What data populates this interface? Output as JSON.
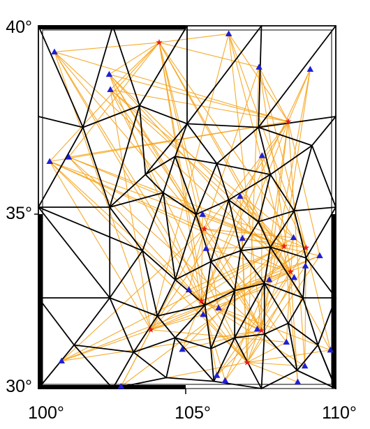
{
  "axes": {
    "lon_range": [
      100,
      110
    ],
    "lat_range": [
      30,
      40
    ],
    "x_ticks": [
      "100°",
      "105°",
      "110°"
    ],
    "y_ticks": [
      "40°",
      "35°",
      "30°"
    ]
  },
  "colors": {
    "ray_path": "#f5a623",
    "mesh_edge": "#000000",
    "station": "#1f1fd6",
    "event": "#e81c1c",
    "frame": "#000000"
  },
  "symbols": {
    "station": "blue-triangle",
    "event": "red-star"
  },
  "events": [
    {
      "lon": 104.06,
      "lat": 39.54
    },
    {
      "lon": 108.4,
      "lat": 37.36
    },
    {
      "lon": 105.58,
      "lat": 34.4
    },
    {
      "lon": 108.26,
      "lat": 33.92
    },
    {
      "lon": 109.0,
      "lat": 33.88
    },
    {
      "lon": 108.48,
      "lat": 33.22
    },
    {
      "lon": 105.48,
      "lat": 32.42
    },
    {
      "lon": 103.78,
      "lat": 31.62
    },
    {
      "lon": 107.5,
      "lat": 31.6
    },
    {
      "lon": 107.02,
      "lat": 30.72
    }
  ],
  "stations": [
    {
      "lon": 100.54,
      "lat": 39.28
    },
    {
      "lon": 102.38,
      "lat": 38.66
    },
    {
      "lon": 102.42,
      "lat": 38.24
    },
    {
      "lon": 106.4,
      "lat": 39.78
    },
    {
      "lon": 107.42,
      "lat": 38.86
    },
    {
      "lon": 109.14,
      "lat": 38.8
    },
    {
      "lon": 100.38,
      "lat": 36.26
    },
    {
      "lon": 101.02,
      "lat": 36.38
    },
    {
      "lon": 107.52,
      "lat": 36.42
    },
    {
      "lon": 106.78,
      "lat": 35.3
    },
    {
      "lon": 105.52,
      "lat": 34.8
    },
    {
      "lon": 108.58,
      "lat": 34.16
    },
    {
      "lon": 106.86,
      "lat": 34.14
    },
    {
      "lon": 105.64,
      "lat": 33.86
    },
    {
      "lon": 109.46,
      "lat": 33.66
    },
    {
      "lon": 108.98,
      "lat": 33.38
    },
    {
      "lon": 108.6,
      "lat": 33.06
    },
    {
      "lon": 107.76,
      "lat": 33.0
    },
    {
      "lon": 105.06,
      "lat": 32.72
    },
    {
      "lon": 106.06,
      "lat": 32.22
    },
    {
      "lon": 105.54,
      "lat": 32.04
    },
    {
      "lon": 107.36,
      "lat": 31.64
    },
    {
      "lon": 108.34,
      "lat": 31.28
    },
    {
      "lon": 104.84,
      "lat": 31.08
    },
    {
      "lon": 109.82,
      "lat": 31.06
    },
    {
      "lon": 100.78,
      "lat": 30.76
    },
    {
      "lon": 108.96,
      "lat": 30.62
    },
    {
      "lon": 106.0,
      "lat": 30.36
    },
    {
      "lon": 106.28,
      "lat": 30.22
    },
    {
      "lon": 102.78,
      "lat": 30.06
    },
    {
      "lon": 108.72,
      "lat": 30.18
    }
  ],
  "mesh_nodes": [
    [
      100.0,
      40.0
    ],
    [
      102.5,
      40.0
    ],
    [
      105.0,
      40.0
    ],
    [
      107.5,
      40.0
    ],
    [
      110.0,
      40.0
    ],
    [
      100.0,
      37.5
    ],
    [
      101.5,
      37.2
    ],
    [
      103.4,
      37.8
    ],
    [
      105.0,
      37.3
    ],
    [
      107.4,
      37.2
    ],
    [
      110.0,
      37.5
    ],
    [
      100.0,
      35.0
    ],
    [
      102.4,
      35.0
    ],
    [
      103.6,
      35.9
    ],
    [
      104.6,
      36.4
    ],
    [
      106.0,
      36.2
    ],
    [
      107.8,
      35.9
    ],
    [
      109.2,
      36.7
    ],
    [
      104.2,
      35.4
    ],
    [
      105.3,
      34.8
    ],
    [
      106.4,
      35.2
    ],
    [
      107.4,
      34.6
    ],
    [
      108.6,
      34.9
    ],
    [
      110.0,
      35.0
    ],
    [
      103.5,
      33.8
    ],
    [
      104.6,
      33.0
    ],
    [
      105.8,
      33.5
    ],
    [
      106.8,
      33.8
    ],
    [
      107.8,
      33.9
    ],
    [
      109.0,
      33.6
    ],
    [
      100.0,
      32.5
    ],
    [
      102.4,
      32.5
    ],
    [
      104.0,
      32.0
    ],
    [
      105.6,
      32.3
    ],
    [
      106.6,
      32.7
    ],
    [
      107.6,
      32.9
    ],
    [
      108.9,
      32.5
    ],
    [
      110.0,
      32.5
    ],
    [
      101.2,
      31.2
    ],
    [
      103.2,
      31.0
    ],
    [
      104.6,
      31.4
    ],
    [
      105.8,
      31.1
    ],
    [
      106.6,
      31.4
    ],
    [
      107.6,
      31.5
    ],
    [
      108.4,
      31.8
    ],
    [
      109.4,
      31.2
    ],
    [
      100.0,
      30.0
    ],
    [
      102.5,
      30.0
    ],
    [
      104.3,
      30.3
    ],
    [
      105.9,
      30.2
    ],
    [
      107.5,
      30.0
    ],
    [
      108.7,
      30.5
    ],
    [
      110.0,
      30.0
    ]
  ],
  "mesh_edges": [
    [
      0,
      1
    ],
    [
      1,
      2
    ],
    [
      2,
      3
    ],
    [
      3,
      4
    ],
    [
      0,
      5
    ],
    [
      5,
      11
    ],
    [
      11,
      30
    ],
    [
      30,
      46
    ],
    [
      4,
      10
    ],
    [
      10,
      23
    ],
    [
      23,
      37
    ],
    [
      37,
      52
    ],
    [
      46,
      47
    ],
    [
      47,
      48
    ],
    [
      48,
      49
    ],
    [
      49,
      50
    ],
    [
      50,
      51
    ],
    [
      51,
      52
    ],
    [
      0,
      6
    ],
    [
      1,
      6
    ],
    [
      1,
      7
    ],
    [
      2,
      7
    ],
    [
      2,
      8
    ],
    [
      3,
      8
    ],
    [
      3,
      9
    ],
    [
      4,
      9
    ],
    [
      5,
      6
    ],
    [
      6,
      7
    ],
    [
      7,
      8
    ],
    [
      8,
      9
    ],
    [
      9,
      10
    ],
    [
      9,
      17
    ],
    [
      10,
      17
    ],
    [
      6,
      11
    ],
    [
      6,
      12
    ],
    [
      7,
      12
    ],
    [
      7,
      13
    ],
    [
      8,
      13
    ],
    [
      8,
      14
    ],
    [
      8,
      15
    ],
    [
      9,
      15
    ],
    [
      9,
      16
    ],
    [
      16,
      17
    ],
    [
      17,
      22
    ],
    [
      17,
      23
    ],
    [
      11,
      12
    ],
    [
      12,
      13
    ],
    [
      13,
      14
    ],
    [
      14,
      15
    ],
    [
      15,
      16
    ],
    [
      13,
      18
    ],
    [
      14,
      18
    ],
    [
      14,
      19
    ],
    [
      15,
      19
    ],
    [
      15,
      20
    ],
    [
      16,
      20
    ],
    [
      16,
      21
    ],
    [
      16,
      22
    ],
    [
      22,
      23
    ],
    [
      12,
      18
    ],
    [
      18,
      19
    ],
    [
      19,
      20
    ],
    [
      20,
      21
    ],
    [
      21,
      22
    ],
    [
      12,
      24
    ],
    [
      18,
      24
    ],
    [
      18,
      25
    ],
    [
      19,
      25
    ],
    [
      19,
      26
    ],
    [
      20,
      26
    ],
    [
      20,
      27
    ],
    [
      21,
      27
    ],
    [
      21,
      28
    ],
    [
      22,
      28
    ],
    [
      22,
      29
    ],
    [
      23,
      29
    ],
    [
      11,
      24
    ],
    [
      24,
      25
    ],
    [
      25,
      26
    ],
    [
      26,
      27
    ],
    [
      27,
      28
    ],
    [
      28,
      29
    ],
    [
      29,
      37
    ],
    [
      11,
      31
    ],
    [
      12,
      31
    ],
    [
      24,
      31
    ],
    [
      24,
      32
    ],
    [
      25,
      32
    ],
    [
      25,
      33
    ],
    [
      26,
      33
    ],
    [
      26,
      34
    ],
    [
      27,
      34
    ],
    [
      27,
      35
    ],
    [
      28,
      35
    ],
    [
      28,
      36
    ],
    [
      29,
      36
    ],
    [
      30,
      31
    ],
    [
      31,
      32
    ],
    [
      32,
      33
    ],
    [
      33,
      34
    ],
    [
      34,
      35
    ],
    [
      35,
      36
    ],
    [
      36,
      37
    ],
    [
      30,
      38
    ],
    [
      31,
      38
    ],
    [
      31,
      39
    ],
    [
      32,
      39
    ],
    [
      32,
      40
    ],
    [
      33,
      40
    ],
    [
      33,
      41
    ],
    [
      34,
      41
    ],
    [
      34,
      42
    ],
    [
      35,
      42
    ],
    [
      35,
      43
    ],
    [
      35,
      44
    ],
    [
      36,
      44
    ],
    [
      36,
      45
    ],
    [
      37,
      45
    ],
    [
      38,
      39
    ],
    [
      39,
      40
    ],
    [
      40,
      41
    ],
    [
      41,
      42
    ],
    [
      42,
      43
    ],
    [
      43,
      44
    ],
    [
      44,
      45
    ],
    [
      45,
      52
    ],
    [
      46,
      38
    ],
    [
      47,
      38
    ],
    [
      47,
      39
    ],
    [
      48,
      39
    ],
    [
      48,
      40
    ],
    [
      49,
      40
    ],
    [
      49,
      41
    ],
    [
      49,
      42
    ],
    [
      50,
      42
    ],
    [
      50,
      43
    ],
    [
      51,
      43
    ],
    [
      51,
      44
    ],
    [
      51,
      45
    ],
    [
      52,
      45
    ]
  ],
  "ray_pairs": [
    [
      0,
      0
    ],
    [
      0,
      1
    ],
    [
      0,
      2
    ],
    [
      0,
      3
    ],
    [
      0,
      4
    ],
    [
      0,
      6
    ],
    [
      0,
      7
    ],
    [
      0,
      10
    ],
    [
      0,
      11
    ],
    [
      0,
      13
    ],
    [
      0,
      16
    ],
    [
      0,
      20
    ],
    [
      0,
      24
    ],
    [
      0,
      27
    ],
    [
      1,
      0
    ],
    [
      1,
      1
    ],
    [
      1,
      2
    ],
    [
      1,
      3
    ],
    [
      1,
      4
    ],
    [
      1,
      5
    ],
    [
      1,
      6
    ],
    [
      1,
      7
    ],
    [
      1,
      8
    ],
    [
      1,
      9
    ],
    [
      1,
      12
    ],
    [
      1,
      14
    ],
    [
      1,
      17
    ],
    [
      1,
      21
    ],
    [
      1,
      26
    ],
    [
      2,
      0
    ],
    [
      2,
      1
    ],
    [
      2,
      2
    ],
    [
      2,
      4
    ],
    [
      2,
      6
    ],
    [
      2,
      8
    ],
    [
      2,
      11
    ],
    [
      2,
      14
    ],
    [
      2,
      18
    ],
    [
      2,
      19
    ],
    [
      2,
      22
    ],
    [
      2,
      25
    ],
    [
      2,
      29
    ],
    [
      3,
      1
    ],
    [
      3,
      2
    ],
    [
      3,
      3
    ],
    [
      3,
      5
    ],
    [
      3,
      6
    ],
    [
      3,
      7
    ],
    [
      3,
      9
    ],
    [
      3,
      10
    ],
    [
      3,
      13
    ],
    [
      3,
      18
    ],
    [
      3,
      20
    ],
    [
      3,
      23
    ],
    [
      3,
      25
    ],
    [
      3,
      28
    ],
    [
      3,
      30
    ],
    [
      4,
      2
    ],
    [
      4,
      3
    ],
    [
      4,
      4
    ],
    [
      4,
      7
    ],
    [
      4,
      8
    ],
    [
      4,
      12
    ],
    [
      4,
      15
    ],
    [
      4,
      19
    ],
    [
      4,
      21
    ],
    [
      4,
      24
    ],
    [
      4,
      26
    ],
    [
      4,
      29
    ],
    [
      5,
      0
    ],
    [
      5,
      1
    ],
    [
      5,
      4
    ],
    [
      5,
      6
    ],
    [
      5,
      9
    ],
    [
      5,
      11
    ],
    [
      5,
      13
    ],
    [
      5,
      16
    ],
    [
      5,
      19
    ],
    [
      5,
      22
    ],
    [
      5,
      25
    ],
    [
      5,
      27
    ],
    [
      5,
      30
    ],
    [
      6,
      0
    ],
    [
      6,
      1
    ],
    [
      6,
      5
    ],
    [
      6,
      6
    ],
    [
      6,
      7
    ],
    [
      6,
      8
    ],
    [
      6,
      10
    ],
    [
      6,
      12
    ],
    [
      6,
      14
    ],
    [
      6,
      15
    ],
    [
      6,
      17
    ],
    [
      6,
      21
    ],
    [
      6,
      23
    ],
    [
      6,
      24
    ],
    [
      6,
      26
    ],
    [
      6,
      28
    ],
    [
      7,
      0
    ],
    [
      7,
      2
    ],
    [
      7,
      3
    ],
    [
      7,
      6
    ],
    [
      7,
      9
    ],
    [
      7,
      11
    ],
    [
      7,
      14
    ],
    [
      7,
      16
    ],
    [
      7,
      18
    ],
    [
      7,
      20
    ],
    [
      7,
      22
    ],
    [
      7,
      25
    ],
    [
      7,
      29
    ],
    [
      8,
      1
    ],
    [
      8,
      3
    ],
    [
      8,
      5
    ],
    [
      8,
      7
    ],
    [
      8,
      8
    ],
    [
      8,
      10
    ],
    [
      8,
      13
    ],
    [
      8,
      15
    ],
    [
      8,
      17
    ],
    [
      8,
      19
    ],
    [
      8,
      23
    ],
    [
      8,
      25
    ],
    [
      8,
      27
    ],
    [
      8,
      28
    ],
    [
      9,
      0
    ],
    [
      9,
      2
    ],
    [
      9,
      4
    ],
    [
      9,
      6
    ],
    [
      9,
      9
    ],
    [
      9,
      11
    ],
    [
      9,
      12
    ],
    [
      9,
      14
    ],
    [
      9,
      16
    ],
    [
      9,
      18
    ],
    [
      9,
      20
    ],
    [
      9,
      22
    ],
    [
      9,
      24
    ],
    [
      9,
      26
    ],
    [
      9,
      29
    ],
    [
      9,
      30
    ]
  ]
}
